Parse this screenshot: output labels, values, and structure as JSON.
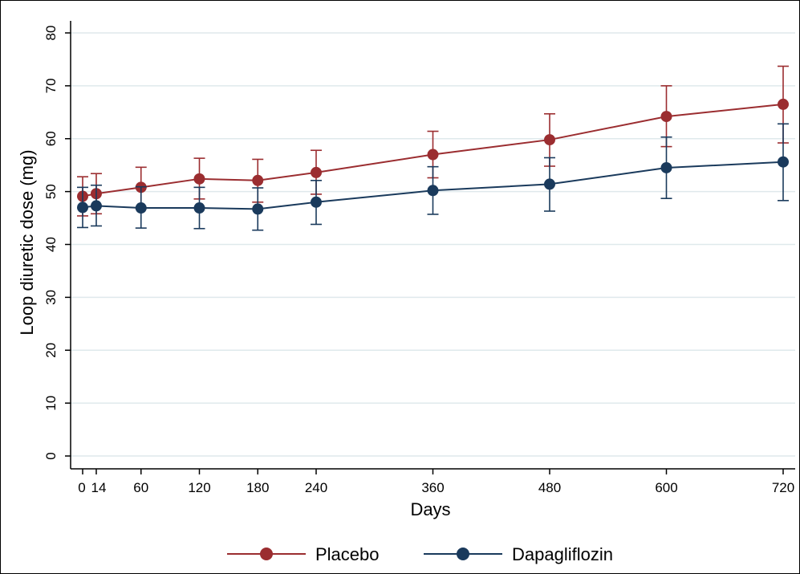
{
  "chart_data": {
    "type": "line",
    "xlabel": "Days",
    "ylabel": "Loop diuretic dose (mg)",
    "x": [
      0,
      14,
      60,
      120,
      180,
      240,
      360,
      480,
      600,
      720
    ],
    "xticks": [
      "0",
      "14",
      "60",
      "120",
      "180",
      "240",
      "360",
      "480",
      "600",
      "720"
    ],
    "yticks": [
      "0",
      "10",
      "20",
      "30",
      "40",
      "50",
      "60",
      "70",
      "80"
    ],
    "xlim": [
      0,
      720
    ],
    "ylim": [
      0,
      80
    ],
    "grid": true,
    "legend_position": "bottom",
    "series": [
      {
        "name": "Placebo",
        "color": "#9b2d30",
        "values": [
          49.1,
          49.6,
          50.8,
          52.4,
          52.1,
          53.6,
          57.0,
          59.8,
          64.2,
          66.5
        ],
        "ci_low": [
          45.4,
          45.8,
          46.8,
          48.6,
          48.0,
          49.5,
          52.6,
          54.8,
          58.5,
          59.2
        ],
        "ci_high": [
          52.8,
          53.4,
          54.6,
          56.3,
          56.1,
          57.8,
          61.4,
          64.7,
          70.0,
          73.7
        ]
      },
      {
        "name": "Dapagliflozin",
        "color": "#1a3a5c",
        "values": [
          47.0,
          47.3,
          46.9,
          46.9,
          46.7,
          48.0,
          50.2,
          51.4,
          54.5,
          55.6
        ],
        "ci_low": [
          43.2,
          43.5,
          43.1,
          43.0,
          42.7,
          43.8,
          45.7,
          46.3,
          48.7,
          48.3
        ],
        "ci_high": [
          50.8,
          51.2,
          50.9,
          50.8,
          50.7,
          52.1,
          54.7,
          56.4,
          60.3,
          62.8
        ]
      }
    ]
  }
}
